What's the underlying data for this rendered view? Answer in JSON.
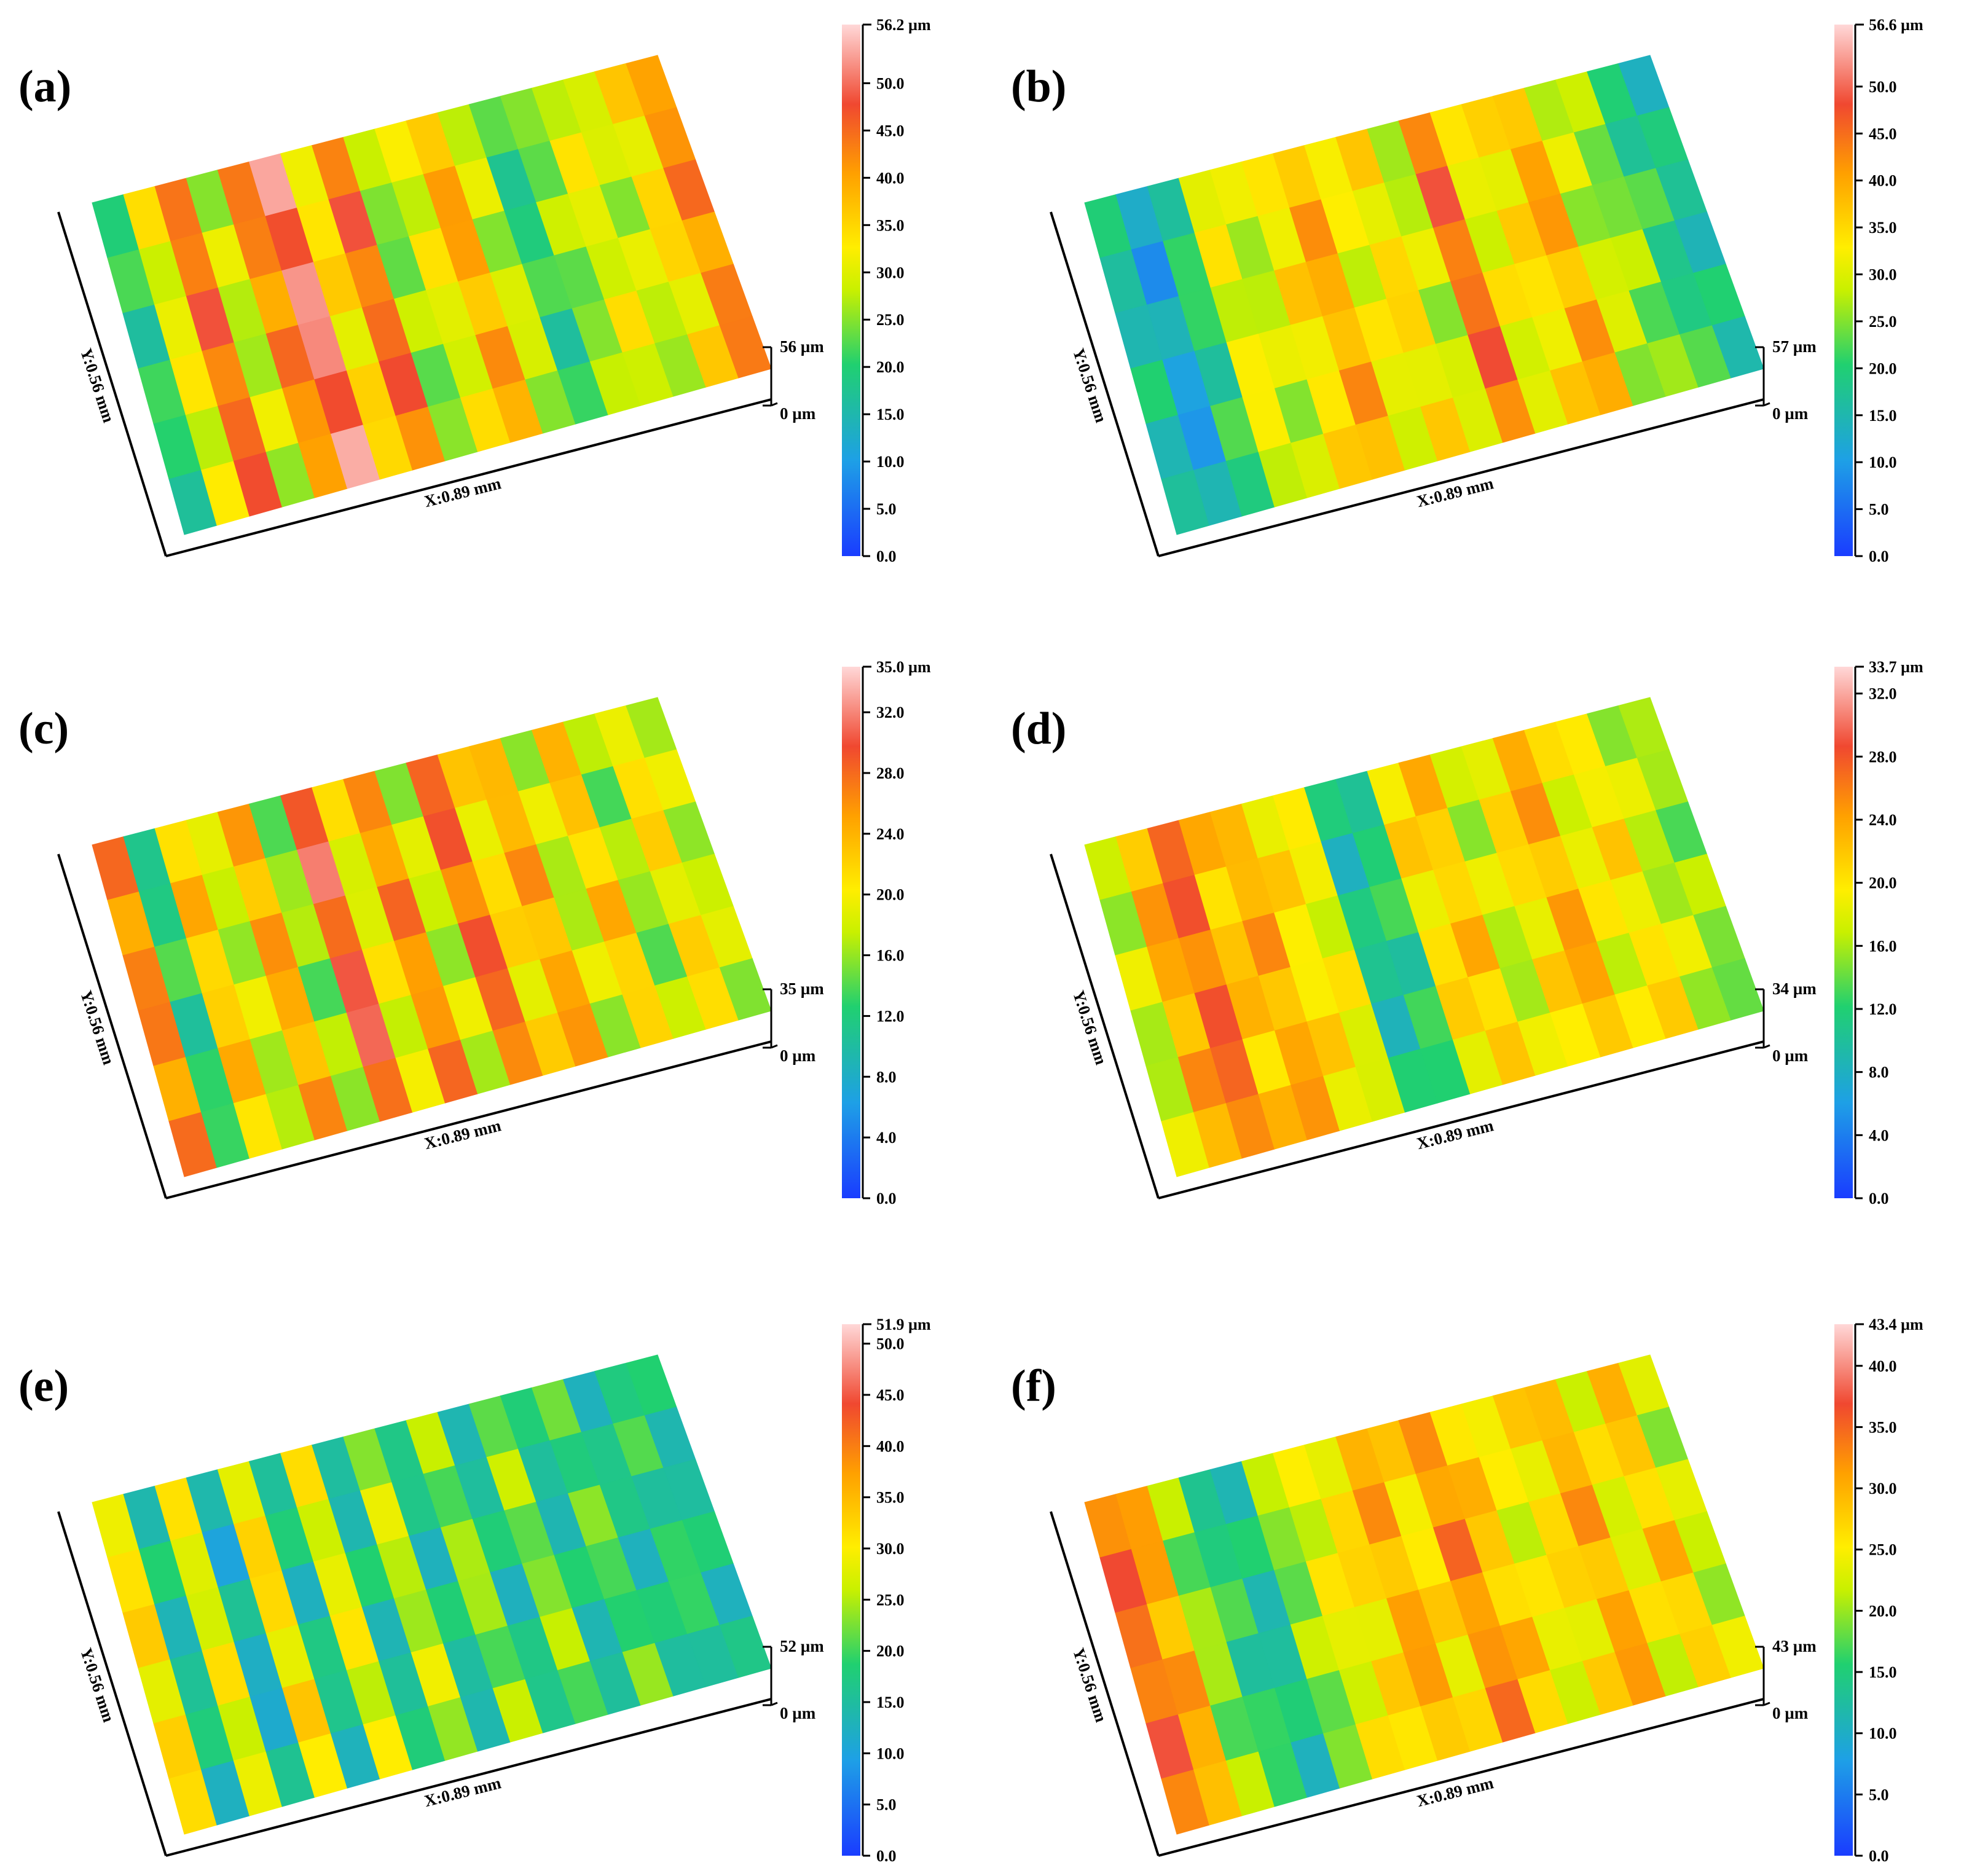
{
  "figure": {
    "panels": [
      {
        "id": "a",
        "label": "(a)",
        "x_label": "X:0.89 mm",
        "y_label": "Y:0.56 mm",
        "z_top": "56 µm",
        "z_bottom": "0 µm",
        "colorbar_max": "56.2 µm",
        "colorbar_ticks": [
          "50.0",
          "45.0",
          "40.0",
          "35.0",
          "30.0",
          "25.0",
          "20.0",
          "15.0",
          "10.0",
          "5.0",
          "0.0"
        ],
        "colorbar_tick_values": [
          50,
          45,
          40,
          35,
          30,
          25,
          20,
          15,
          10,
          5,
          0
        ],
        "max_value": 56.2,
        "stripes": [
          0.35,
          0.55,
          0.8,
          0.5,
          0.75,
          0.9,
          0.6,
          0.8,
          0.45,
          0.55,
          0.7,
          0.5,
          0.35,
          0.45,
          0.55,
          0.5,
          0.6,
          0.75
        ]
      },
      {
        "id": "b",
        "label": "(b)",
        "x_label": "X:0.89 mm",
        "y_label": "Y:0.56 mm",
        "z_top": "57 µm",
        "z_bottom": "0 µm",
        "colorbar_max": "56.6 µm",
        "colorbar_ticks": [
          "50.0",
          "45.0",
          "40.0",
          "35.0",
          "30.0",
          "25.0",
          "20.0",
          "15.0",
          "10.0",
          "5.0",
          "0.0"
        ],
        "colorbar_tick_values": [
          50,
          45,
          40,
          35,
          30,
          25,
          20,
          15,
          10,
          5,
          0
        ],
        "max_value": 56.6,
        "stripes": [
          0.3,
          0.2,
          0.35,
          0.55,
          0.5,
          0.6,
          0.7,
          0.55,
          0.6,
          0.5,
          0.8,
          0.55,
          0.6,
          0.7,
          0.5,
          0.45,
          0.35,
          0.3
        ]
      },
      {
        "id": "c",
        "label": "(c)",
        "x_label": "X:0.89 mm",
        "y_label": "Y:0.56 mm",
        "z_top": "35 µm",
        "z_bottom": "0 µm",
        "colorbar_max": "35.0 µm",
        "colorbar_ticks": [
          "32.0",
          "28.0",
          "24.0",
          "20.0",
          "16.0",
          "12.0",
          "8.0",
          "4.0",
          "0.0"
        ],
        "colorbar_tick_values": [
          32,
          28,
          24,
          20,
          16,
          12,
          8,
          4,
          0
        ],
        "max_value": 35.0,
        "stripes": [
          0.75,
          0.35,
          0.65,
          0.5,
          0.7,
          0.45,
          0.85,
          0.55,
          0.75,
          0.5,
          0.8,
          0.6,
          0.7,
          0.5,
          0.65,
          0.45,
          0.6,
          0.5
        ]
      },
      {
        "id": "d",
        "label": "(d)",
        "x_label": "X:0.89 mm",
        "y_label": "Y:0.56 mm",
        "z_top": "34 µm",
        "z_bottom": "0 µm",
        "colorbar_max": "33.7 µm",
        "colorbar_ticks": [
          "32.0",
          "28.0",
          "24.0",
          "20.0",
          "16.0",
          "12.0",
          "8.0",
          "4.0",
          "0.0"
        ],
        "colorbar_tick_values": [
          32,
          28,
          24,
          20,
          16,
          12,
          8,
          4,
          0
        ],
        "max_value": 33.7,
        "stripes": [
          0.5,
          0.7,
          0.8,
          0.65,
          0.7,
          0.6,
          0.55,
          0.3,
          0.35,
          0.6,
          0.65,
          0.5,
          0.6,
          0.7,
          0.55,
          0.6,
          0.5,
          0.45
        ]
      },
      {
        "id": "e",
        "label": "(e)",
        "x_label": "X:0.89 mm",
        "y_label": "Y:0.56 mm",
        "z_top": "52 µm",
        "z_bottom": "0 µm",
        "colorbar_max": "51.9 µm",
        "colorbar_ticks": [
          "50.0",
          "45.0",
          "40.0",
          "35.0",
          "30.0",
          "25.0",
          "20.0",
          "15.0",
          "10.0",
          "5.0",
          "0.0"
        ],
        "colorbar_tick_values": [
          50,
          45,
          40,
          35,
          30,
          25,
          20,
          15,
          10,
          5,
          0
        ],
        "max_value": 51.9,
        "stripes": [
          0.6,
          0.3,
          0.55,
          0.25,
          0.6,
          0.3,
          0.55,
          0.3,
          0.5,
          0.3,
          0.45,
          0.3,
          0.45,
          0.3,
          0.4,
          0.3,
          0.35,
          0.3
        ]
      },
      {
        "id": "f",
        "label": "(f)",
        "x_label": "X:0.89 mm",
        "y_label": "Y:0.56 mm",
        "z_top": "43 µm",
        "z_bottom": "0 µm",
        "colorbar_max": "43.4 µm",
        "colorbar_ticks": [
          "40.0",
          "35.0",
          "30.0",
          "25.0",
          "20.0",
          "15.0",
          "10.0",
          "5.0",
          "0.0"
        ],
        "colorbar_tick_values": [
          40,
          35,
          30,
          25,
          20,
          15,
          10,
          5,
          0
        ],
        "max_value": 43.4,
        "stripes": [
          0.8,
          0.7,
          0.45,
          0.35,
          0.3,
          0.45,
          0.55,
          0.6,
          0.7,
          0.6,
          0.75,
          0.65,
          0.55,
          0.6,
          0.7,
          0.55,
          0.65,
          0.5
        ]
      }
    ]
  }
}
